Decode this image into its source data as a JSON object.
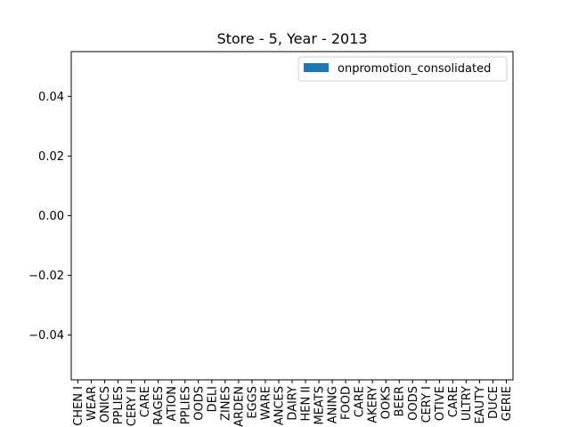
{
  "chart_data": {
    "type": "bar",
    "title": "Store - 5, Year - 2013",
    "xlabel": "",
    "ylabel": "",
    "ylim": [
      -0.055,
      0.055
    ],
    "yticks": [
      0.04,
      0.02,
      0.0,
      -0.02,
      -0.04
    ],
    "ytick_labels": [
      "0.04",
      "0.02",
      "0.00",
      "−0.02",
      "−0.04"
    ],
    "categories": [
      "CHEN I",
      "WEAR",
      "ONICS",
      "PPLIES",
      "CERY II",
      "CARE",
      "RAGES",
      "ATION",
      "PPLIES",
      "OODS",
      "DELI",
      "ZINES",
      "ARDEN",
      "EGGS",
      "WARE",
      "ANCES",
      "DAIRY",
      "HEN II",
      "MEATS",
      "ANING",
      "FOOD",
      "CARE",
      "AKERY",
      "OOKS",
      "BEER",
      "OODS",
      "CERY I",
      "OTIVE",
      "CARE",
      "ULTRY",
      "EAUTY",
      "DUCE",
      "GERIE"
    ],
    "series": [
      {
        "name": "onpromotion_consolidated",
        "color": "#1f77b4",
        "values": [
          0,
          0,
          0,
          0,
          0,
          0,
          0,
          0,
          0,
          0,
          0,
          0,
          0,
          0,
          0,
          0,
          0,
          0,
          0,
          0,
          0,
          0,
          0,
          0,
          0,
          0,
          0,
          0,
          0,
          0,
          0,
          0,
          0
        ]
      }
    ],
    "grid": false,
    "legend_position": "upper right"
  }
}
